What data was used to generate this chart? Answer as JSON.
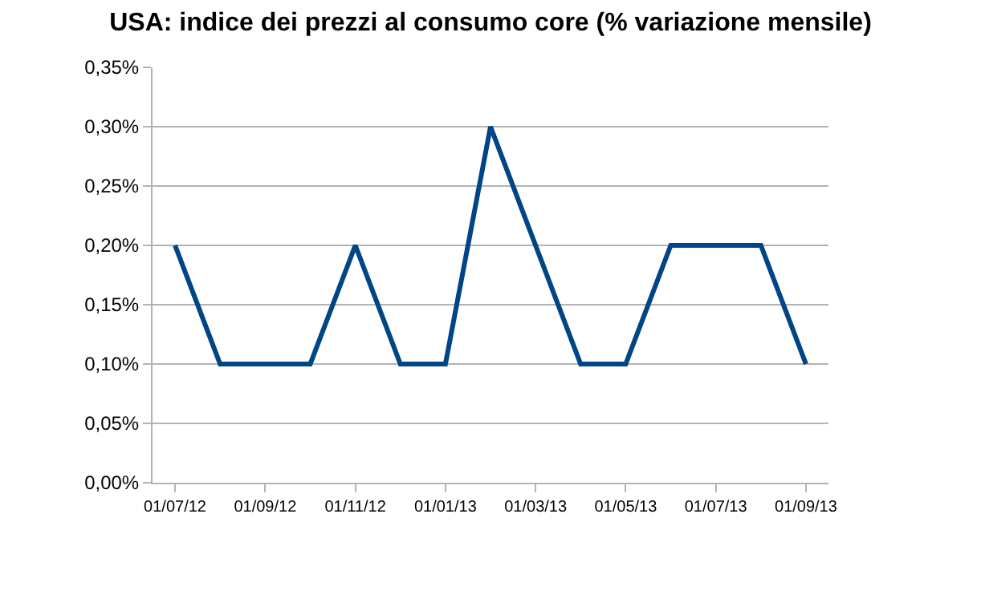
{
  "chart_data": {
    "type": "line",
    "title": "USA: indice dei prezzi al consumo core (% variazione mensile)",
    "categories": [
      "01/07/12",
      null,
      "01/09/12",
      null,
      "01/11/12",
      null,
      "01/01/13",
      null,
      "01/03/13",
      null,
      "01/05/13",
      null,
      "01/07/13",
      null,
      "01/09/13"
    ],
    "series": [
      {
        "color": "#004586",
        "values": [
          0.2,
          0.1,
          0.1,
          0.1,
          0.2,
          0.1,
          0.1,
          0.3,
          0.2,
          0.1,
          0.1,
          0.2,
          0.2,
          0.2,
          0.1
        ]
      }
    ],
    "ylim": [
      0,
      0.35
    ],
    "yticks": [
      {
        "value": 0,
        "label": "0,00%"
      },
      {
        "value": 0.05,
        "label": "0,05%"
      },
      {
        "value": 0.1,
        "label": "0,10%"
      },
      {
        "value": 0.15,
        "label": "0,15%"
      },
      {
        "value": 0.2,
        "label": "0,20%"
      },
      {
        "value": 0.25,
        "label": "0,25%"
      },
      {
        "value": 0.3,
        "label": "0,30%"
      },
      {
        "value": 0.35,
        "label": "0,35%"
      }
    ],
    "grid": "y",
    "marker": "none",
    "line_style": "solid"
  }
}
